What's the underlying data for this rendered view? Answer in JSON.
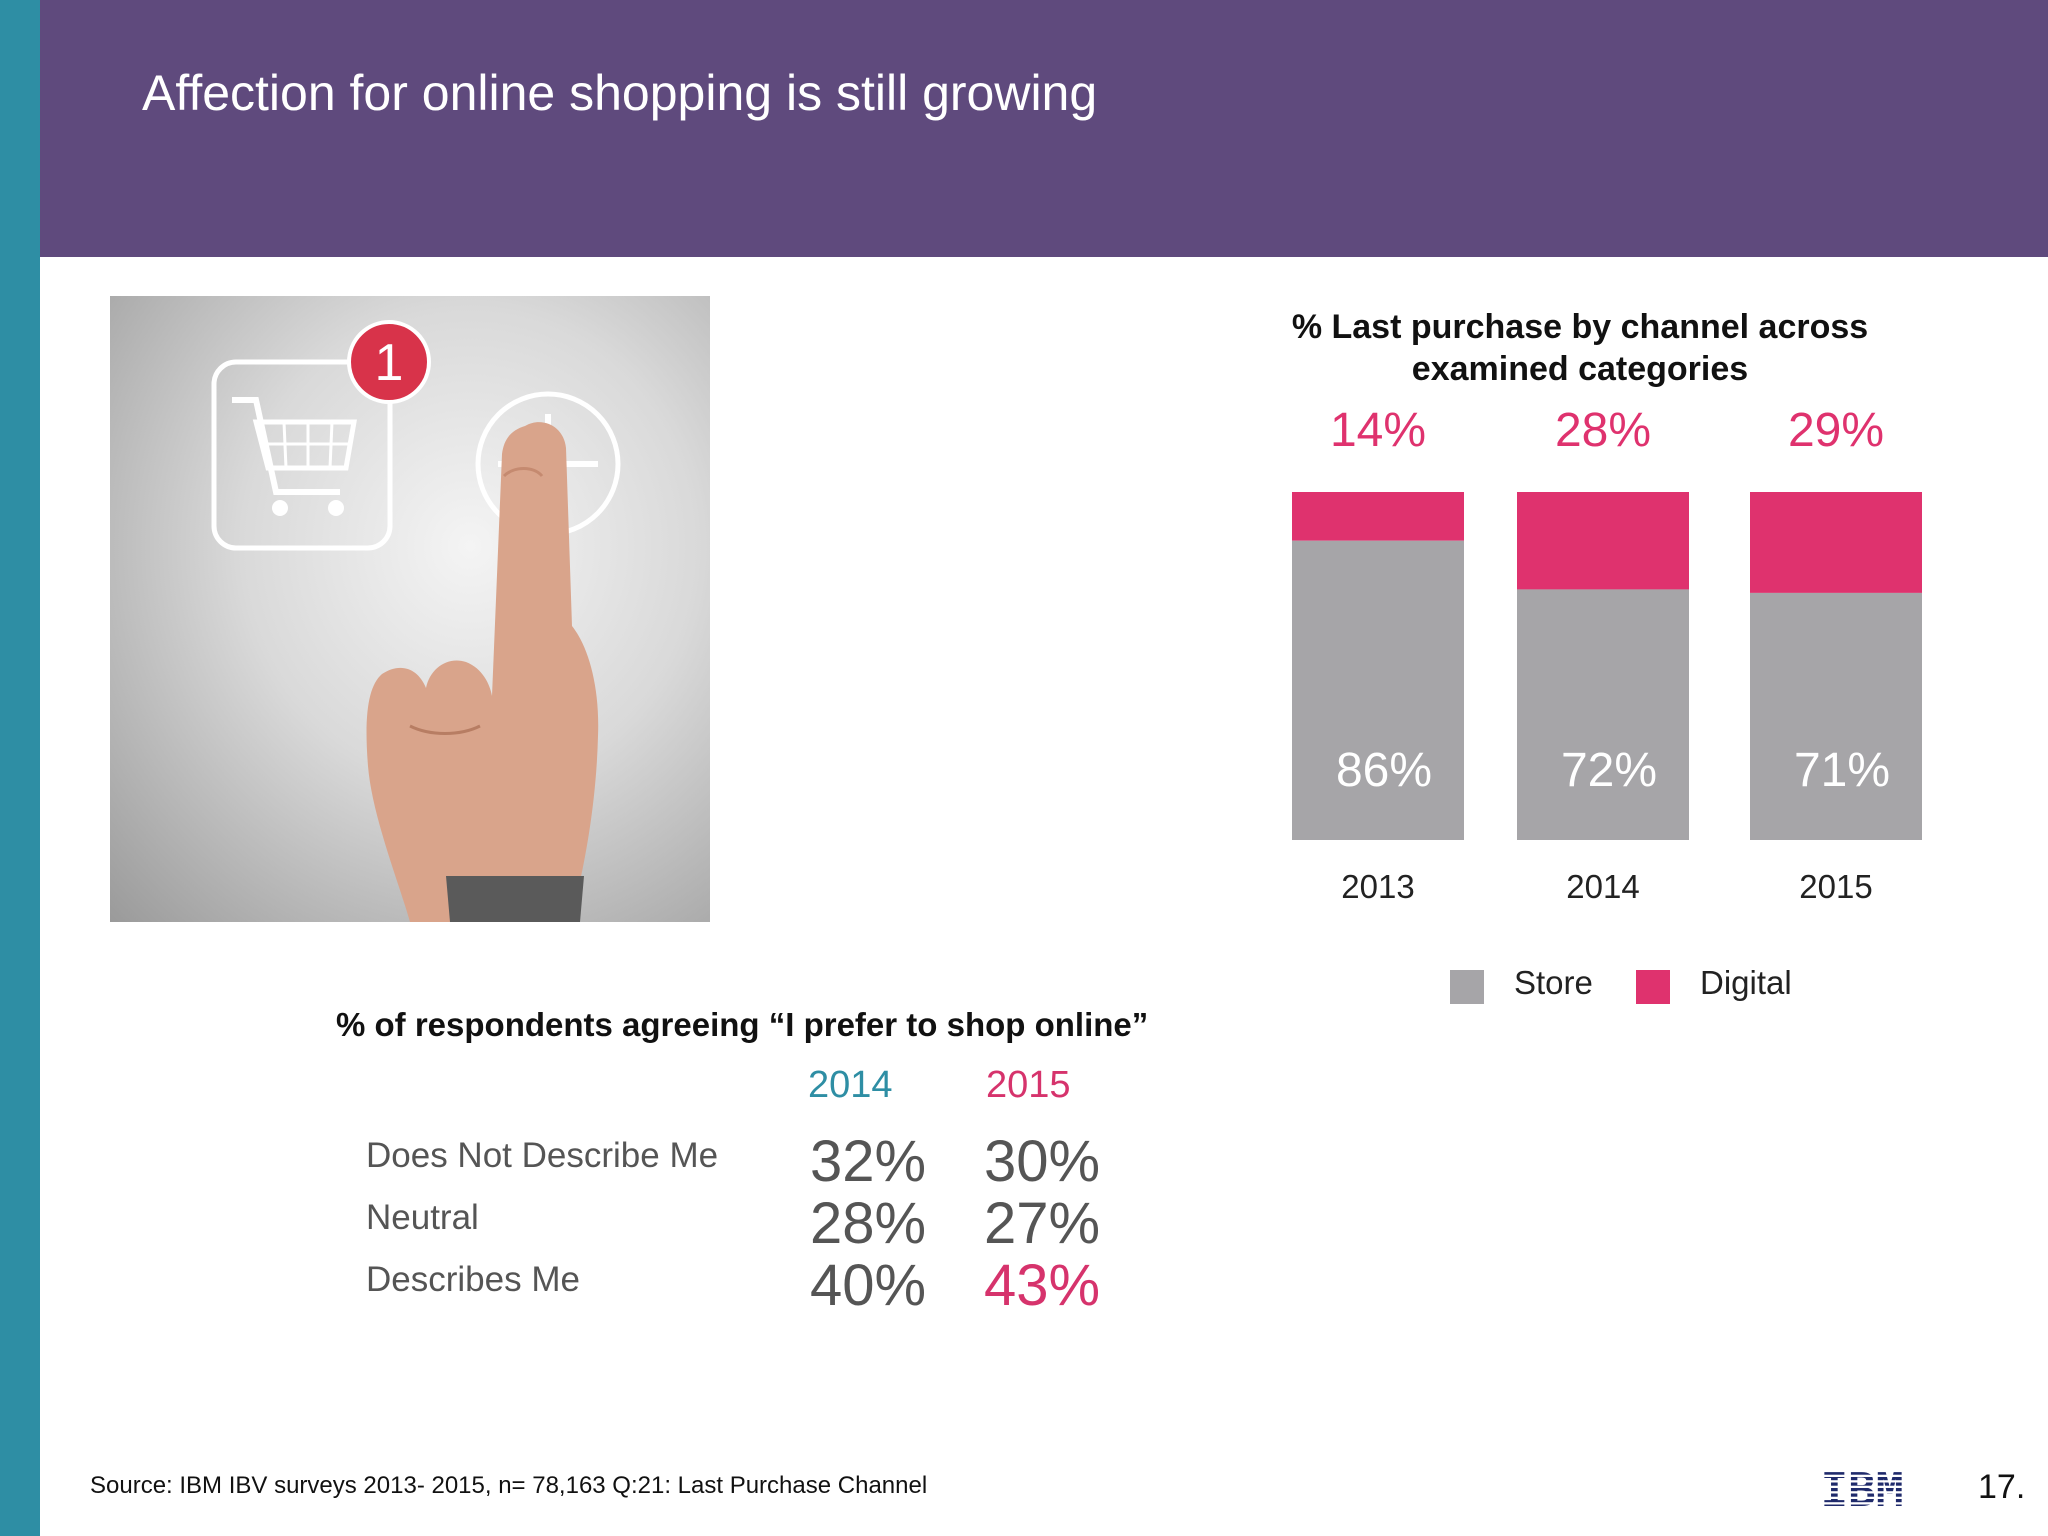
{
  "slide": {
    "title": "Affection for online shopping is still growing",
    "source": "Source:  IBM IBV surveys 2013- 2015, n=  78,163 Q:21: Last Purchase Channel",
    "page_number": "17.",
    "logo_text": "IBM"
  },
  "photo": {
    "badge": "1",
    "icons": [
      "shopping-cart-icon",
      "plus-circle-icon"
    ]
  },
  "colors": {
    "header": "#5f4a7d",
    "side_bar": "#2e8ea4",
    "store": "#a6a5a8",
    "digital": "#df326e",
    "year_2014": "#2e8ea4",
    "year_2015": "#d6336c"
  },
  "chart_data": {
    "type": "bar",
    "stacked": true,
    "title": "% Last purchase by channel across examined categories",
    "categories": [
      "2013",
      "2014",
      "2015"
    ],
    "series": [
      {
        "name": "Store",
        "values": [
          86,
          72,
          71
        ],
        "labels": [
          "86%",
          "72%",
          "71%"
        ],
        "color": "#a6a5a8"
      },
      {
        "name": "Digital",
        "values": [
          14,
          28,
          29
        ],
        "labels": [
          "14%",
          "28%",
          "29%"
        ],
        "color": "#df326e"
      }
    ],
    "ylim": [
      0,
      100
    ],
    "grid": false,
    "legend": "bottom"
  },
  "survey": {
    "title": "% of respondents agreeing “I prefer to shop online”",
    "years": [
      "2014",
      "2015"
    ],
    "rows": [
      {
        "label": "Does Not Describe Me",
        "y2014": "32%",
        "y2015": "30%"
      },
      {
        "label": "Neutral",
        "y2014": "28%",
        "y2015": "27%"
      },
      {
        "label": "Describes Me",
        "y2014": "40%",
        "y2015": "43%"
      }
    ]
  }
}
